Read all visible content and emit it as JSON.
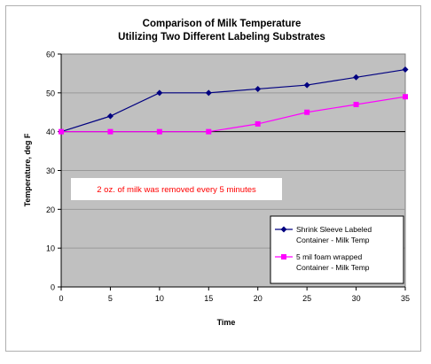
{
  "chart_data": {
    "type": "line",
    "title": "Comparison of Milk Temperature",
    "subtitle": "Utilizing Two Different Labeling Substrates",
    "xlabel": "Time",
    "ylabel": "Temperature, deg F",
    "x": [
      0,
      5,
      10,
      15,
      20,
      25,
      30,
      35
    ],
    "xlim": [
      0,
      35
    ],
    "ylim": [
      0,
      60
    ],
    "x_ticks": [
      "0",
      "5",
      "10",
      "15",
      "20",
      "25",
      "30",
      "35"
    ],
    "y_ticks": [
      "0",
      "10",
      "20",
      "30",
      "40",
      "50",
      "60"
    ],
    "grid": true,
    "reference_line": 40,
    "annotation": "2 oz. of milk was removed every 5 minutes",
    "legend_position": "bottom-right",
    "series": [
      {
        "name": "Shrink Sleeve Labeled Container - Milk Temp",
        "legend_lines": [
          "Shrink Sleeve Labeled",
          "Container - Milk Temp"
        ],
        "values": [
          40,
          44,
          50,
          50,
          51,
          52,
          54,
          56
        ],
        "color": "#000080",
        "marker": "diamond"
      },
      {
        "name": "5 mil foam wrapped Container - Milk Temp",
        "legend_lines": [
          "5 mil foam wrapped",
          "Container - Milk Temp"
        ],
        "values": [
          40,
          40,
          40,
          40,
          42,
          45,
          47,
          49
        ],
        "color": "#ff00ff",
        "marker": "square"
      }
    ],
    "colors": {
      "plot_background": "#c0c0c0",
      "annotation_text": "#ff0000",
      "reference_line": "#000000"
    }
  }
}
